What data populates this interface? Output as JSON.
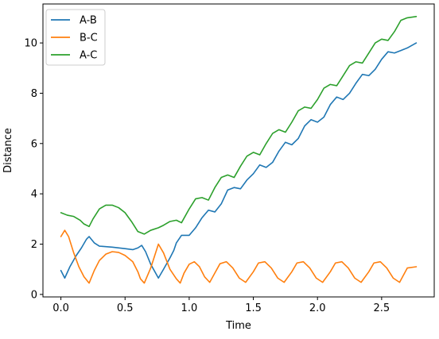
{
  "chart_data": {
    "type": "line",
    "title": "",
    "xlabel": "Time",
    "ylabel": "Distance",
    "xlim": [
      -0.14,
      2.91
    ],
    "ylim": [
      -0.1,
      11.55
    ],
    "xticks": [
      0.0,
      0.5,
      1.0,
      1.5,
      2.0,
      2.5
    ],
    "xtick_labels": [
      "0.0",
      "0.5",
      "1.0",
      "1.5",
      "2.0",
      "2.5"
    ],
    "yticks": [
      0,
      2,
      4,
      6,
      8,
      10
    ],
    "ytick_labels": [
      "0",
      "2",
      "4",
      "6",
      "8",
      "10"
    ],
    "grid": false,
    "legend_position": "top-left",
    "series": [
      {
        "name": "A-B",
        "color": "#1f77b4",
        "x": [
          0.0,
          0.03,
          0.07,
          0.12,
          0.16,
          0.2,
          0.22,
          0.26,
          0.3,
          0.4,
          0.5,
          0.56,
          0.6,
          0.63,
          0.66,
          0.7,
          0.76,
          0.8,
          0.85,
          0.88,
          0.9,
          0.94,
          1.0,
          1.05,
          1.1,
          1.15,
          1.2,
          1.25,
          1.3,
          1.35,
          1.4,
          1.45,
          1.5,
          1.55,
          1.6,
          1.65,
          1.7,
          1.75,
          1.8,
          1.85,
          1.9,
          1.95,
          2.0,
          2.05,
          2.1,
          2.15,
          2.2,
          2.25,
          2.3,
          2.35,
          2.4,
          2.45,
          2.5,
          2.55,
          2.6,
          2.65,
          2.7,
          2.77
        ],
        "y": [
          0.95,
          0.65,
          1.1,
          1.55,
          1.85,
          2.2,
          2.3,
          2.05,
          1.92,
          1.88,
          1.82,
          1.78,
          1.85,
          1.95,
          1.7,
          1.2,
          0.65,
          1.0,
          1.45,
          1.75,
          2.05,
          2.35,
          2.35,
          2.65,
          3.05,
          3.35,
          3.28,
          3.6,
          4.15,
          4.25,
          4.2,
          4.55,
          4.8,
          5.15,
          5.05,
          5.25,
          5.7,
          6.05,
          5.95,
          6.2,
          6.7,
          6.95,
          6.85,
          7.05,
          7.55,
          7.85,
          7.75,
          8.0,
          8.4,
          8.75,
          8.7,
          8.95,
          9.35,
          9.65,
          9.6,
          9.7,
          9.8,
          10.0
        ]
      },
      {
        "name": "B-C",
        "color": "#ff7f0e",
        "x": [
          0.0,
          0.03,
          0.06,
          0.1,
          0.14,
          0.18,
          0.22,
          0.26,
          0.3,
          0.35,
          0.4,
          0.45,
          0.5,
          0.56,
          0.6,
          0.62,
          0.65,
          0.7,
          0.76,
          0.8,
          0.85,
          0.9,
          0.93,
          0.96,
          1.0,
          1.04,
          1.08,
          1.12,
          1.16,
          1.2,
          1.24,
          1.29,
          1.34,
          1.39,
          1.44,
          1.5,
          1.54,
          1.59,
          1.64,
          1.69,
          1.74,
          1.8,
          1.84,
          1.89,
          1.94,
          1.99,
          2.04,
          2.1,
          2.14,
          2.19,
          2.24,
          2.29,
          2.34,
          2.4,
          2.44,
          2.49,
          2.54,
          2.59,
          2.64,
          2.7,
          2.77
        ],
        "y": [
          2.3,
          2.55,
          2.3,
          1.65,
          1.1,
          0.7,
          0.45,
          0.95,
          1.35,
          1.6,
          1.7,
          1.67,
          1.55,
          1.3,
          0.9,
          0.62,
          0.45,
          1.05,
          2.0,
          1.65,
          1.0,
          0.62,
          0.45,
          0.85,
          1.2,
          1.3,
          1.1,
          0.7,
          0.48,
          0.85,
          1.22,
          1.3,
          1.05,
          0.65,
          0.48,
          0.9,
          1.25,
          1.3,
          1.05,
          0.65,
          0.48,
          0.9,
          1.25,
          1.3,
          1.05,
          0.65,
          0.48,
          0.9,
          1.25,
          1.3,
          1.05,
          0.65,
          0.48,
          0.9,
          1.25,
          1.3,
          1.05,
          0.65,
          0.48,
          1.05,
          1.1
        ]
      },
      {
        "name": "A-C",
        "color": "#2ca02c",
        "x": [
          0.0,
          0.05,
          0.1,
          0.15,
          0.18,
          0.22,
          0.25,
          0.3,
          0.35,
          0.4,
          0.45,
          0.5,
          0.55,
          0.6,
          0.65,
          0.7,
          0.76,
          0.8,
          0.85,
          0.9,
          0.94,
          1.0,
          1.05,
          1.1,
          1.15,
          1.2,
          1.25,
          1.3,
          1.35,
          1.4,
          1.45,
          1.5,
          1.55,
          1.6,
          1.65,
          1.7,
          1.75,
          1.8,
          1.85,
          1.9,
          1.95,
          2.0,
          2.05,
          2.1,
          2.15,
          2.2,
          2.25,
          2.3,
          2.35,
          2.4,
          2.45,
          2.5,
          2.55,
          2.6,
          2.65,
          2.7,
          2.77
        ],
        "y": [
          3.25,
          3.15,
          3.1,
          2.95,
          2.8,
          2.7,
          3.0,
          3.4,
          3.55,
          3.55,
          3.45,
          3.25,
          2.9,
          2.5,
          2.4,
          2.55,
          2.65,
          2.75,
          2.9,
          2.95,
          2.85,
          3.4,
          3.8,
          3.85,
          3.75,
          4.25,
          4.65,
          4.75,
          4.65,
          5.1,
          5.5,
          5.65,
          5.55,
          6.0,
          6.4,
          6.55,
          6.45,
          6.85,
          7.3,
          7.45,
          7.4,
          7.75,
          8.2,
          8.35,
          8.3,
          8.7,
          9.1,
          9.25,
          9.2,
          9.6,
          10.0,
          10.15,
          10.1,
          10.45,
          10.9,
          11.0,
          11.05
        ]
      }
    ]
  }
}
